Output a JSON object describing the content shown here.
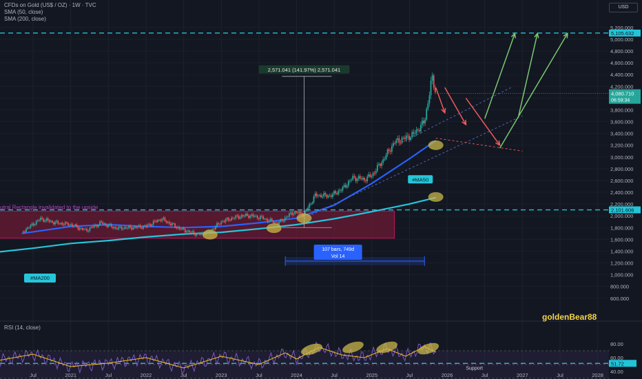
{
  "header": {
    "title": "CFDs on Gold (US$ / OZ) · 1W · TVC",
    "sma50": "SMA (50, close)",
    "sma200": "SMA (200, close)",
    "currency": "USD"
  },
  "rsi_label": "RSI (14, close)",
  "watermark": "goldenBear88",
  "annotations": {
    "measure": "2,571.041 (141.97%) 2,571.041",
    "range_bars": "107 bars, 749d",
    "range_vol": "Vol 14",
    "ma50": "#MA50",
    "ma200": "#MA200",
    "rectangle": "utral Rectangle invalidated to the upside",
    "support": "Support"
  },
  "colors": {
    "background": "#131722",
    "up": "#26a69a",
    "down": "#ef5350",
    "ma50": "#2962ff",
    "ma200": "#26c6da",
    "rectangle": "#8b1a3a",
    "level": "#22c4d8",
    "highlight": "#c9b84a",
    "projection_up": "#7bc96f",
    "projection_down": "#f05b5b"
  },
  "chart_data": [
    {
      "type": "line",
      "title": "CFDs on Gold (US$ / OZ) · 1W · TVC",
      "x_ticks": [
        "Jul",
        "2021",
        "Jul",
        "2022",
        "Jul",
        "2023",
        "Jul",
        "2024",
        "Jul",
        "2025",
        "Jul",
        "2026",
        "Jul",
        "2027",
        "Jul",
        "2028"
      ],
      "x_ticks_decimal": [
        2020.5,
        2021.0,
        2021.5,
        2022.0,
        2022.5,
        2023.0,
        2023.5,
        2024.0,
        2024.5,
        2025.0,
        2025.5,
        2026.0,
        2026.5,
        2027.0,
        2027.5,
        2028.0
      ],
      "y_ticks": [
        "5,200.000",
        "5,000.000",
        "4,800.000",
        "4,600.000",
        "4,400.000",
        "4,200.000",
        "4,000.000",
        "3,800.000",
        "3,600.000",
        "3,400.000",
        "3,200.000",
        "3,000.000",
        "2,800.000",
        "2,600.000",
        "2,400.000",
        "2,200.000",
        "2,000.000",
        "1,800.000",
        "1,600.000",
        "1,400.000",
        "1,200.000",
        "1,000.000",
        "800.000",
        "600.000"
      ],
      "current_price": "4,080.710",
      "countdown": "06:59:34",
      "levels": [
        {
          "value": 5105.632,
          "label": "5,105.632"
        },
        {
          "value": 2101.606,
          "label": "2,101.606"
        }
      ],
      "series": [
        {
          "name": "Gold",
          "x": [
            2020.35,
            2020.6,
            2020.8,
            2021.0,
            2021.2,
            2021.4,
            2021.6,
            2021.8,
            2022.0,
            2022.2,
            2022.45,
            2022.7,
            2022.85,
            2023.0,
            2023.2,
            2023.35,
            2023.55,
            2023.75,
            2023.95,
            2024.1,
            2024.25,
            2024.45,
            2024.6,
            2024.75,
            2024.9,
            2025.0,
            2025.15,
            2025.3,
            2025.4,
            2025.55,
            2025.7,
            2025.8,
            2025.85
          ],
          "values": [
            1720,
            1950,
            1880,
            1850,
            1750,
            1880,
            1790,
            1800,
            1820,
            1950,
            1780,
            1680,
            1740,
            1900,
            1980,
            2010,
            1960,
            1870,
            2060,
            2030,
            2350,
            2340,
            2450,
            2650,
            2620,
            2690,
            2950,
            3250,
            3300,
            3380,
            3600,
            4350,
            4080
          ]
        },
        {
          "name": "SMA (50, close)",
          "x": [
            2020.35,
            2021.0,
            2021.5,
            2022.0,
            2022.5,
            2023.0,
            2023.5,
            2024.0,
            2024.5,
            2025.0,
            2025.5,
            2025.85
          ],
          "values": [
            1700,
            1820,
            1850,
            1820,
            1800,
            1820,
            1880,
            1960,
            2180,
            2550,
            2970,
            3280
          ]
        },
        {
          "name": "SMA (200, close)",
          "x": [
            2020.0,
            2020.5,
            2021.0,
            2021.5,
            2022.0,
            2022.5,
            2023.0,
            2023.5,
            2024.0,
            2024.5,
            2025.0,
            2025.5,
            2025.85
          ],
          "values": [
            1380,
            1450,
            1530,
            1580,
            1640,
            1690,
            1720,
            1780,
            1850,
            1950,
            2070,
            2200,
            2310
          ]
        }
      ],
      "rectangle": {
        "x": [
          2020.0,
          2025.3
        ],
        "y": [
          1620,
          2080
        ]
      },
      "measure": {
        "x": 2024.1,
        "from": 1800,
        "to": 4370
      },
      "date_range": {
        "x": [
          2023.85,
          2025.7
        ],
        "y": 1230
      },
      "projections_down": [
        {
          "x": [
            2025.85,
            2025.97
          ],
          "y": [
            4180,
            3750
          ]
        },
        {
          "x": [
            2025.97,
            2026.25
          ],
          "y": [
            4180,
            3550
          ]
        },
        {
          "x": [
            2026.25,
            2026.7
          ],
          "y": [
            4000,
            3200
          ]
        }
      ],
      "projections_up": [
        {
          "x": [
            2026.5,
            2026.9
          ],
          "y": [
            3650,
            5100
          ]
        },
        {
          "x": [
            2026.95,
            2027.2
          ],
          "y": [
            3700,
            5100
          ]
        },
        {
          "x": [
            2026.7,
            2027.6
          ],
          "y": [
            3150,
            5100
          ]
        }
      ],
      "highlights": [
        {
          "x": 2022.85,
          "y": 1680
        },
        {
          "x": 2023.7,
          "y": 1790
        },
        {
          "x": 2024.1,
          "y": 1960
        },
        {
          "x": 2025.85,
          "y": 3200
        },
        {
          "x": 2025.85,
          "y": 2320
        }
      ]
    },
    {
      "type": "line",
      "title": "RSI (14, close)",
      "y_ticks": [
        "80.00",
        "60.00",
        "40.00"
      ],
      "current_value": "51.72",
      "support_level": 51.72,
      "series": [
        {
          "name": "RSI",
          "x": [
            2020.0,
            2020.5,
            2021.0,
            2021.5,
            2022.0,
            2022.5,
            2023.0,
            2023.5,
            2023.85,
            2024.0,
            2024.3,
            2024.6,
            2024.9,
            2025.2,
            2025.45,
            2025.7,
            2025.85
          ],
          "values": [
            55,
            65,
            47,
            52,
            60,
            45,
            62,
            50,
            67,
            58,
            75,
            64,
            60,
            73,
            62,
            76,
            68
          ]
        }
      ],
      "highlights": [
        {
          "x": 2024.2,
          "y": 72
        },
        {
          "x": 2024.75,
          "y": 75
        },
        {
          "x": 2025.2,
          "y": 75
        },
        {
          "x": 2025.75,
          "y": 73
        }
      ]
    }
  ]
}
